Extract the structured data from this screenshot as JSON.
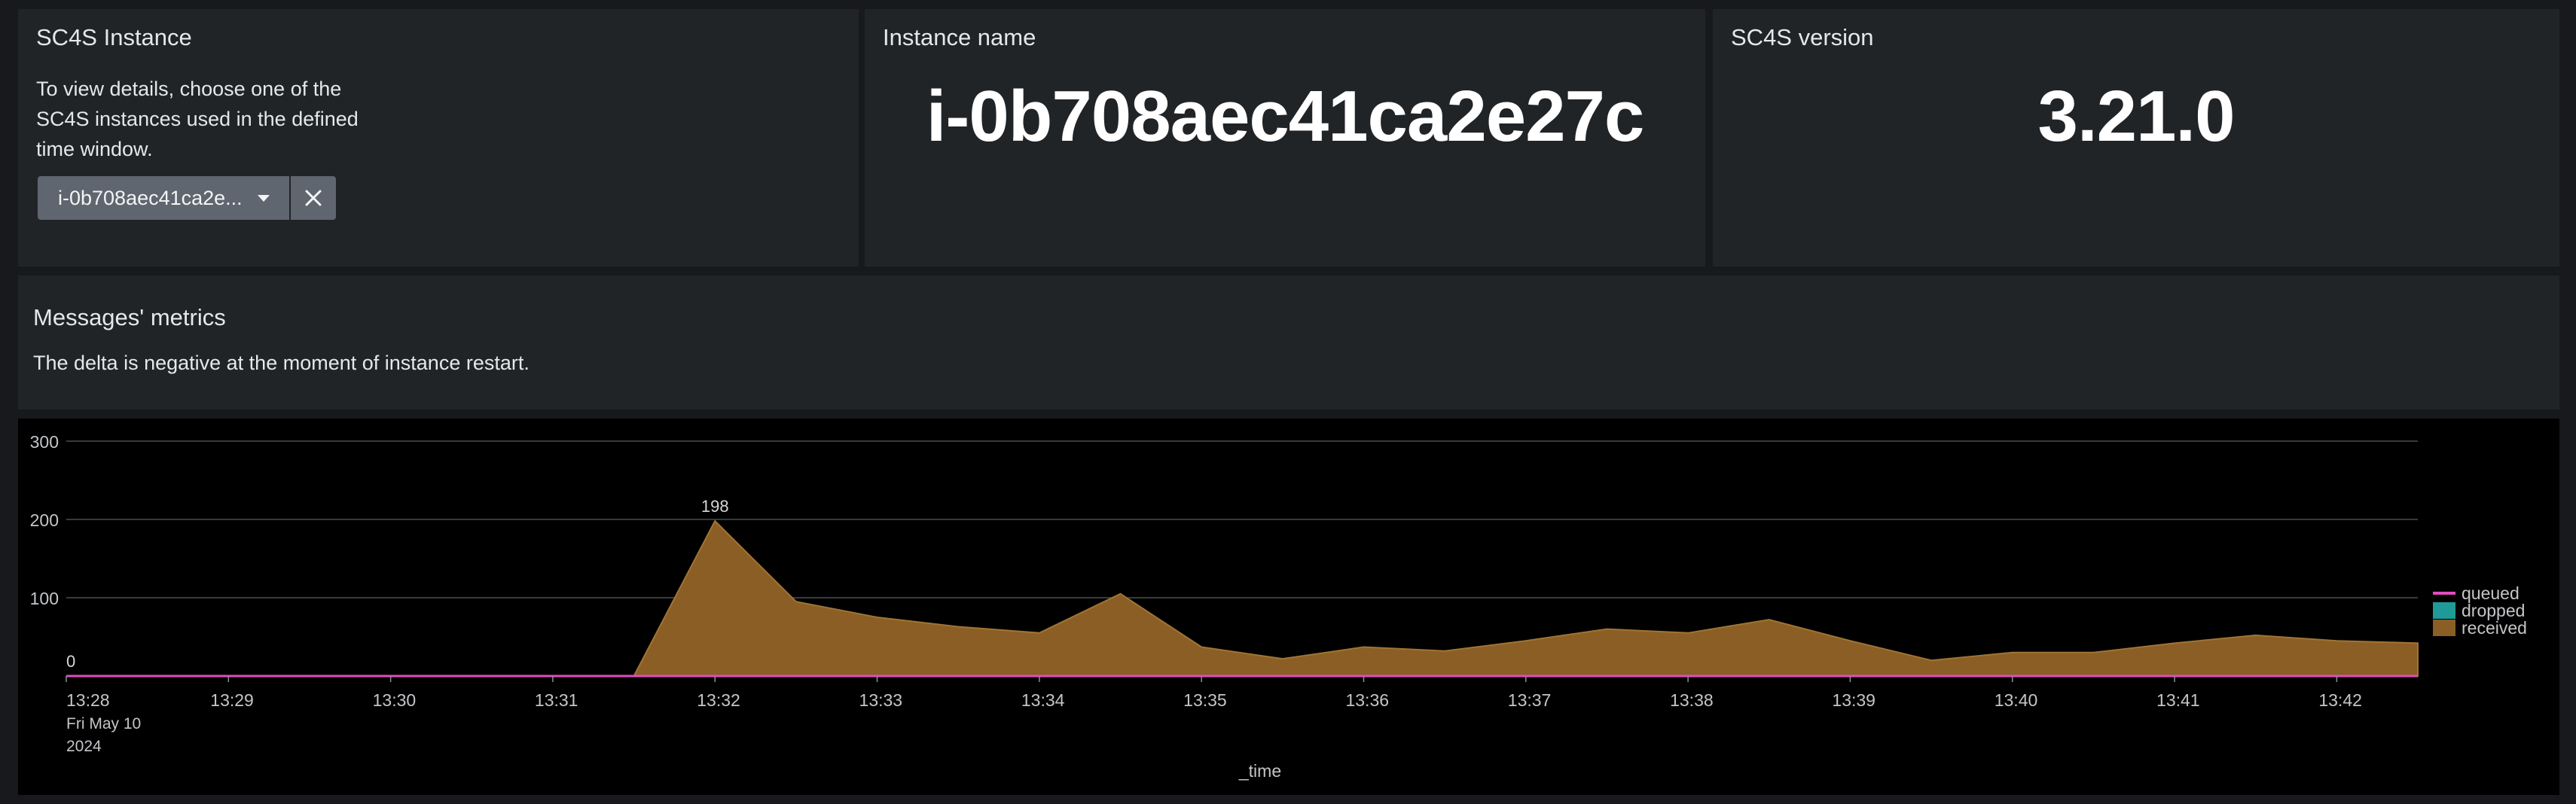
{
  "instance_panel": {
    "title": "SC4S Instance",
    "description_lines": [
      "To view details, choose one of the",
      "SC4S instances used in the defined",
      "time window."
    ],
    "selected_value": "i-0b708aec41ca2e..."
  },
  "name_panel": {
    "title": "Instance name",
    "value": "i-0b708aec41ca2e27c"
  },
  "version_panel": {
    "title": "SC4S version",
    "value": "3.21.0"
  },
  "metrics_panel": {
    "title": "Messages' metrics",
    "description": "The delta is negative at the moment of instance restart."
  },
  "colors": {
    "received": "#8a5e24",
    "received_line": "#a07434",
    "dropped": "#1f9a98",
    "queued": "#e34cc0",
    "grid": "#4a4d51"
  },
  "chart_data": {
    "type": "area",
    "x": [
      "13:28",
      "13:28:30",
      "13:29",
      "13:29:30",
      "13:30",
      "13:30:30",
      "13:31",
      "13:31:30",
      "13:32",
      "13:32:30",
      "13:33",
      "13:33:30",
      "13:34",
      "13:34:30",
      "13:35",
      "13:35:30",
      "13:36",
      "13:36:30",
      "13:37",
      "13:37:30",
      "13:38",
      "13:38:30",
      "13:39",
      "13:39:30",
      "13:40",
      "13:40:30",
      "13:41",
      "13:41:30",
      "13:42",
      "13:42:30"
    ],
    "series": [
      {
        "name": "queued",
        "values": [
          0,
          0,
          0,
          0,
          0,
          0,
          0,
          0,
          0,
          0,
          0,
          0,
          0,
          0,
          0,
          0,
          0,
          0,
          0,
          0,
          0,
          0,
          0,
          0,
          0,
          0,
          0,
          0,
          0,
          0
        ]
      },
      {
        "name": "dropped",
        "values": [
          0,
          0,
          0,
          0,
          0,
          0,
          0,
          0,
          0,
          0,
          0,
          0,
          0,
          0,
          0,
          0,
          0,
          0,
          0,
          0,
          0,
          0,
          0,
          0,
          0,
          0,
          0,
          0,
          0,
          0
        ]
      },
      {
        "name": "received",
        "values": [
          0,
          0,
          0,
          0,
          0,
          0,
          0,
          0,
          198,
          95,
          75,
          63,
          55,
          105,
          37,
          22,
          37,
          32,
          45,
          60,
          55,
          72,
          45,
          20,
          30,
          30,
          42,
          52,
          45,
          42
        ]
      }
    ],
    "ylim": [
      0,
      300
    ],
    "yticks": [
      "0",
      "100",
      "200",
      "300"
    ],
    "xtick_labels": [
      "13:28",
      "13:29",
      "13:30",
      "13:31",
      "13:32",
      "13:33",
      "13:34",
      "13:35",
      "13:36",
      "13:37",
      "13:38",
      "13:39",
      "13:40",
      "13:41",
      "13:42"
    ],
    "date_label_lines": [
      "Fri May 10",
      "2024"
    ],
    "xlabel": "_time",
    "data_labels": [
      {
        "index": 8,
        "text": "198"
      },
      {
        "index": 0,
        "text": "0"
      }
    ],
    "legend": [
      "queued",
      "dropped",
      "received"
    ],
    "legend_position": "right"
  }
}
